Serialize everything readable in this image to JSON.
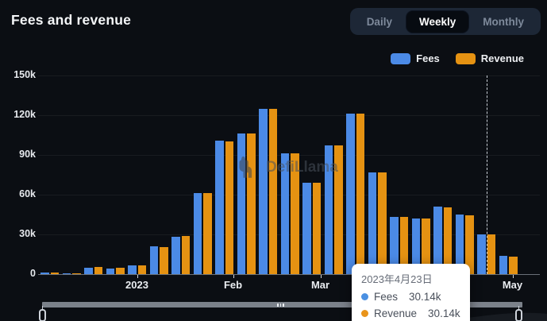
{
  "header": {
    "title": "Fees and revenue"
  },
  "period_toggle": {
    "options": [
      "Daily",
      "Weekly",
      "Monthly"
    ],
    "selected": "Weekly"
  },
  "legend": {
    "items": [
      {
        "label": "Fees",
        "color": "#4b8ae6"
      },
      {
        "label": "Revenue",
        "color": "#e59212"
      }
    ]
  },
  "chart_data": {
    "type": "bar",
    "title": "Fees and revenue",
    "granularity": "Weekly",
    "unit": "thousands",
    "ylim": [
      0,
      150
    ],
    "grid": true,
    "legend_position": "top-right",
    "y_axis": {
      "ticks": [
        {
          "label": "0",
          "value": 0
        },
        {
          "label": "30k",
          "value": 30
        },
        {
          "label": "60k",
          "value": 60
        },
        {
          "label": "90k",
          "value": 90
        },
        {
          "label": "120k",
          "value": 120
        },
        {
          "label": "150k",
          "value": 150
        }
      ]
    },
    "x_axis": {
      "ticks": [
        {
          "label": "2023",
          "week": 5
        },
        {
          "label": "Feb",
          "week": 9.4
        },
        {
          "label": "Mar",
          "week": 13.4
        },
        {
          "label": "May",
          "week": 22.2
        }
      ]
    },
    "series": [
      {
        "name": "Fees",
        "color": "#4b8ae6",
        "values_k": [
          1.5,
          0.8,
          5,
          4.5,
          6.5,
          21,
          28.5,
          61,
          101,
          106,
          125,
          91,
          69,
          97,
          121,
          77,
          43,
          42,
          51,
          45,
          30.14,
          14
        ]
      },
      {
        "name": "Revenue",
        "color": "#e59212",
        "values_k": [
          1.2,
          0.8,
          5.5,
          5,
          6.8,
          20.5,
          29,
          61,
          100,
          106,
          125,
          91,
          69,
          97.5,
          121,
          77,
          43,
          42,
          50.5,
          44.5,
          30.14,
          13.5
        ]
      }
    ],
    "highlight": {
      "week": 21,
      "date": "2023年4月23日",
      "fees_k": 30.14,
      "revenue_k": 30.14
    }
  },
  "tooltip": {
    "date": "2023年4月23日",
    "rows": [
      {
        "label": "Fees",
        "value": "30.14k",
        "color": "#4a90e2"
      },
      {
        "label": "Revenue",
        "value": "30.14k",
        "color": "#e9941a"
      }
    ]
  },
  "watermark": {
    "text": "DefiLlama"
  },
  "colors": {
    "background": "#0b0e13",
    "toggle_bg": "#1d2736",
    "toggle_selected_bg": "#070b11",
    "fees": "#4b8ae6",
    "revenue": "#e59212"
  }
}
